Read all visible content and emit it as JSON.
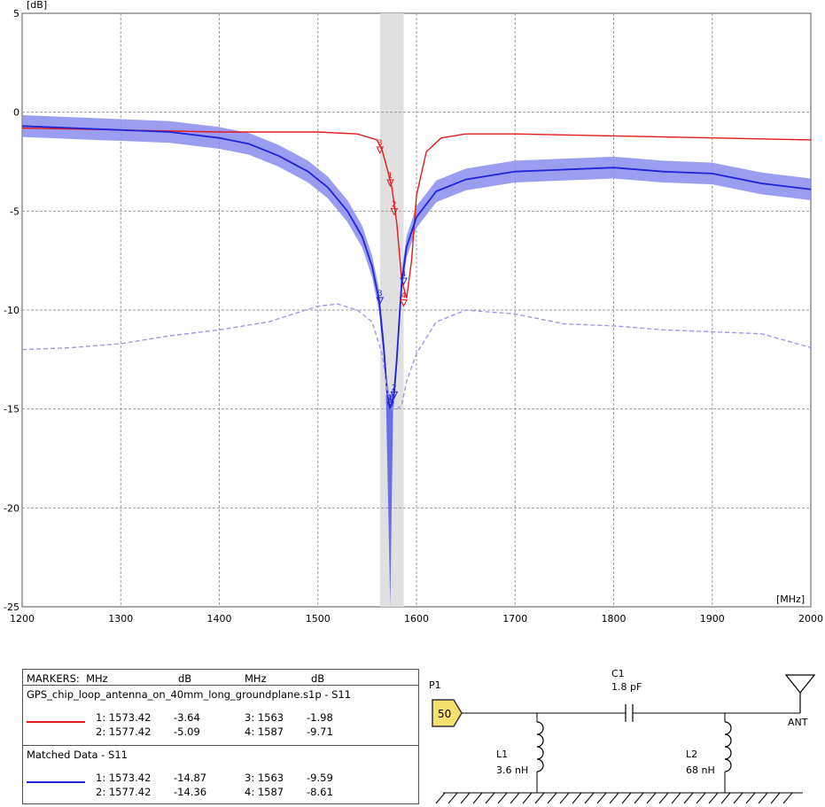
{
  "chart_data": {
    "type": "line",
    "ylabel_unit": "[dB]",
    "xlabel_unit": "[MHz]",
    "xlim": [
      1200,
      2000
    ],
    "ylim": [
      -25,
      5
    ],
    "x_ticks": [
      "1200",
      "1300",
      "1400",
      "1500",
      "1600",
      "1700",
      "1800",
      "1900",
      "2000"
    ],
    "y_ticks": [
      "5",
      "0",
      "-5",
      "-10",
      "-15",
      "-20",
      "-25"
    ],
    "grid": true,
    "highlight_band": [
      1563,
      1587
    ],
    "series": [
      {
        "name": "GPS_chip_loop_antenna_on_40mm_long_groundplane.s1p - S11",
        "color": "#e41a1c",
        "x": [
          1200,
          1300,
          1400,
          1450,
          1500,
          1540,
          1560,
          1565,
          1570,
          1575,
          1580,
          1585,
          1590,
          1595,
          1600,
          1610,
          1625,
          1650,
          1700,
          1750,
          1800,
          1850,
          1900,
          1950,
          2000
        ],
        "y": [
          -0.8,
          -0.9,
          -1.0,
          -1.0,
          -1.0,
          -1.1,
          -1.4,
          -1.9,
          -2.8,
          -3.8,
          -5.6,
          -8.5,
          -9.4,
          -7.5,
          -4.2,
          -2.0,
          -1.3,
          -1.1,
          -1.1,
          -1.15,
          -1.2,
          -1.25,
          -1.3,
          -1.35,
          -1.4
        ]
      },
      {
        "name": "Matched Data - S11",
        "color": "#1f24d6",
        "x": [
          1200,
          1250,
          1300,
          1350,
          1400,
          1430,
          1460,
          1490,
          1510,
          1530,
          1545,
          1555,
          1562,
          1567,
          1570,
          1573,
          1577,
          1580,
          1585,
          1590,
          1600,
          1620,
          1650,
          1700,
          1750,
          1800,
          1850,
          1900,
          1950,
          2000
        ],
        "y": [
          -0.7,
          -0.8,
          -0.9,
          -1.0,
          -1.3,
          -1.6,
          -2.2,
          -3.0,
          -3.8,
          -5.0,
          -6.3,
          -7.8,
          -9.5,
          -12.0,
          -14.1,
          -14.9,
          -14.4,
          -12.5,
          -8.6,
          -6.8,
          -5.3,
          -4.0,
          -3.4,
          -3.0,
          -2.9,
          -2.8,
          -3.0,
          -3.1,
          -3.6,
          -3.9
        ],
        "band_halfwidth_db": 0.55
      },
      {
        "name": "",
        "color": "#9a9ae6",
        "dashed": true,
        "x": [
          1200,
          1250,
          1300,
          1350,
          1400,
          1450,
          1500,
          1520,
          1540,
          1555,
          1565,
          1570,
          1575,
          1580,
          1585,
          1590,
          1600,
          1620,
          1650,
          1700,
          1750,
          1800,
          1850,
          1900,
          1950,
          2000
        ],
        "y": [
          -12.0,
          -11.9,
          -11.7,
          -11.3,
          -11.0,
          -10.6,
          -9.8,
          -9.7,
          -10.0,
          -10.6,
          -12.2,
          -14.0,
          -15.0,
          -15.0,
          -14.8,
          -13.6,
          -12.2,
          -10.6,
          -10.0,
          -10.2,
          -10.7,
          -10.8,
          -11.0,
          -11.1,
          -11.2,
          -11.9
        ]
      }
    ],
    "point_markers": [
      {
        "series": 0,
        "label": "3",
        "x": 1563,
        "y": -1.98
      },
      {
        "series": 0,
        "label": "1",
        "x": 1573.42,
        "y": -3.64
      },
      {
        "series": 0,
        "label": "2",
        "x": 1577.42,
        "y": -5.09
      },
      {
        "series": 0,
        "label": "4",
        "x": 1587,
        "y": -9.71
      },
      {
        "series": 1,
        "label": "3",
        "x": 1563,
        "y": -9.59
      },
      {
        "series": 1,
        "label": "4",
        "x": 1587,
        "y": -8.61
      },
      {
        "series": 1,
        "label": "1",
        "x": 1573.42,
        "y": -14.87
      },
      {
        "series": 1,
        "label": "2",
        "x": 1577.42,
        "y": -14.36
      }
    ]
  },
  "markers_table": {
    "header": [
      "MARKERS:  MHz",
      "dB",
      "MHz",
      "dB"
    ],
    "groups": [
      {
        "title": "GPS_chip_loop_antenna_on_40mm_long_groundplane.s1p - S11",
        "color": "#e41a1c",
        "rows": [
          [
            "1: 1573.42",
            "-3.64",
            "3: 1563",
            "-1.98"
          ],
          [
            "2: 1577.42",
            "-5.09",
            "4: 1587",
            "-9.71"
          ]
        ]
      },
      {
        "title": "Matched Data - S11",
        "color": "#1f24d6",
        "rows": [
          [
            "1: 1573.42",
            "-14.87",
            "3: 1563",
            "-9.59"
          ],
          [
            "2: 1577.42",
            "-14.36",
            "4: 1587",
            "-8.61"
          ]
        ]
      }
    ]
  },
  "schematic": {
    "port_label": "P1",
    "port_value": "50",
    "c1_name": "C1",
    "c1_value": "1.8 pF",
    "l1_name": "L1",
    "l1_value": "3.6 nH",
    "l2_name": "L2",
    "l2_value": "68 nH",
    "antenna_label": "ANT"
  }
}
